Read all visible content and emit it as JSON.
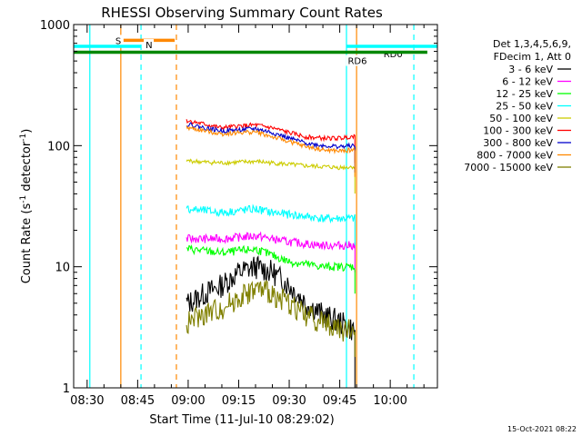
{
  "chart_data": {
    "type": "line",
    "title": "RHESSI Observing Summary Count Rates",
    "xlabel": "Start Time (11-Jul-10 08:29:02)",
    "ylabel_main": "Count Rate (s",
    "ylabel_sup": "-1",
    "ylabel_tail": " detector",
    "ylabel_end": ")",
    "yscale": "log",
    "ylim": [
      1,
      1000
    ],
    "xlim_minutes": [
      -4,
      104
    ],
    "x_ticks": [
      {
        "label": "08:30",
        "minute": 0
      },
      {
        "label": "08:45",
        "minute": 15
      },
      {
        "label": "09:00",
        "minute": 30
      },
      {
        "label": "09:15",
        "minute": 45
      },
      {
        "label": "09:30",
        "minute": 60
      },
      {
        "label": "09:45",
        "minute": 75
      },
      {
        "label": "10:00",
        "minute": 90
      }
    ],
    "y_ticks": [
      {
        "label": "1",
        "value": 1
      },
      {
        "label": "10",
        "value": 10
      },
      {
        "label": "100",
        "value": 100
      },
      {
        "label": "1000",
        "value": 1000
      }
    ],
    "info_lines": [
      "Det 1,3,4,5,6,9,",
      "FDecim 1, Att 0"
    ],
    "series": [
      {
        "name": "3 - 6 keV",
        "color": "#000000",
        "minutes": [
          30,
          35,
          40,
          45,
          50,
          55,
          60,
          65,
          70,
          75,
          79
        ],
        "values": [
          5,
          6,
          7,
          9,
          10,
          9,
          7,
          5,
          4,
          3.5,
          3
        ]
      },
      {
        "name": "6 - 12 keV",
        "color": "#ff00ff",
        "minutes": [
          30,
          40,
          50,
          60,
          70,
          79
        ],
        "values": [
          17,
          17,
          18,
          16,
          15,
          15
        ]
      },
      {
        "name": "12 - 25 keV",
        "color": "#00ff00",
        "minutes": [
          30,
          40,
          50,
          60,
          70,
          79
        ],
        "values": [
          14,
          13,
          14,
          11,
          10,
          10
        ]
      },
      {
        "name": "25 - 50 keV",
        "color": "#00ffff",
        "minutes": [
          30,
          35,
          40,
          45,
          50,
          55,
          60,
          65,
          70,
          75,
          79
        ],
        "values": [
          30,
          29,
          28,
          29,
          30,
          28,
          27,
          26,
          25,
          25,
          25
        ]
      },
      {
        "name": "50 - 100 keV",
        "color": "#cccc00",
        "minutes": [
          30,
          35,
          40,
          45,
          50,
          55,
          60,
          65,
          70,
          75,
          79
        ],
        "values": [
          75,
          73,
          72,
          73,
          74,
          72,
          70,
          68,
          67,
          66,
          67
        ]
      },
      {
        "name": "100 - 300 keV",
        "color": "#ff0000",
        "minutes": [
          30,
          35,
          40,
          45,
          50,
          55,
          60,
          65,
          70,
          75,
          79
        ],
        "values": [
          160,
          150,
          140,
          145,
          148,
          140,
          128,
          118,
          115,
          115,
          120
        ]
      },
      {
        "name": "300 - 800 keV",
        "color": "#0000cc",
        "minutes": [
          30,
          35,
          40,
          45,
          50,
          55,
          60,
          65,
          70,
          75,
          79
        ],
        "values": [
          150,
          140,
          132,
          135,
          138,
          128,
          115,
          105,
          100,
          98,
          100
        ]
      },
      {
        "name": "800 - 7000 keV",
        "color": "#ff8800",
        "minutes": [
          30,
          35,
          40,
          45,
          50,
          55,
          60,
          65,
          70,
          75,
          79
        ],
        "values": [
          140,
          132,
          125,
          128,
          130,
          118,
          108,
          98,
          92,
          90,
          92
        ]
      },
      {
        "name": "7000 - 15000 keV",
        "color": "#808000",
        "minutes": [
          30,
          35,
          40,
          45,
          50,
          55,
          60,
          65,
          70,
          75,
          79
        ],
        "values": [
          3.5,
          4,
          4.5,
          5.5,
          6.5,
          6,
          5,
          4,
          3.5,
          3,
          3
        ]
      }
    ],
    "annotations": [
      {
        "label": "S",
        "color": "#ff8800",
        "minute_start": 10,
        "minute_end": 26,
        "y_value": 740
      },
      {
        "label": "N",
        "color": "#00ffff",
        "minute_start": -4,
        "minute_end": 16,
        "y_value": 660
      },
      {
        "label": "RD0",
        "color": "#00ffff",
        "minute_start": 77,
        "minute_end": 104,
        "y_value": 660
      },
      {
        "label": "RD6",
        "color": "#008800",
        "minute_start": -4,
        "minute_end": 101,
        "y_value": 590
      }
    ],
    "vertical_lines": [
      {
        "minute": 0.8,
        "color": "#00ffff",
        "style": "solid"
      },
      {
        "minute": 10,
        "color": "#ff8800",
        "style": "solid"
      },
      {
        "minute": 16,
        "color": "#00ffff",
        "style": "dashed"
      },
      {
        "minute": 26.5,
        "color": "#ff8800",
        "style": "dashed"
      },
      {
        "minute": 77,
        "color": "#00ffff",
        "style": "solid"
      },
      {
        "minute": 80,
        "color": "#ff8800",
        "style": "solid"
      },
      {
        "minute": 97,
        "color": "#00ffff",
        "style": "dashed"
      }
    ],
    "data_window_minutes": [
      29.5,
      79.5
    ],
    "timestamp": "15-Oct-2021 08:22"
  }
}
